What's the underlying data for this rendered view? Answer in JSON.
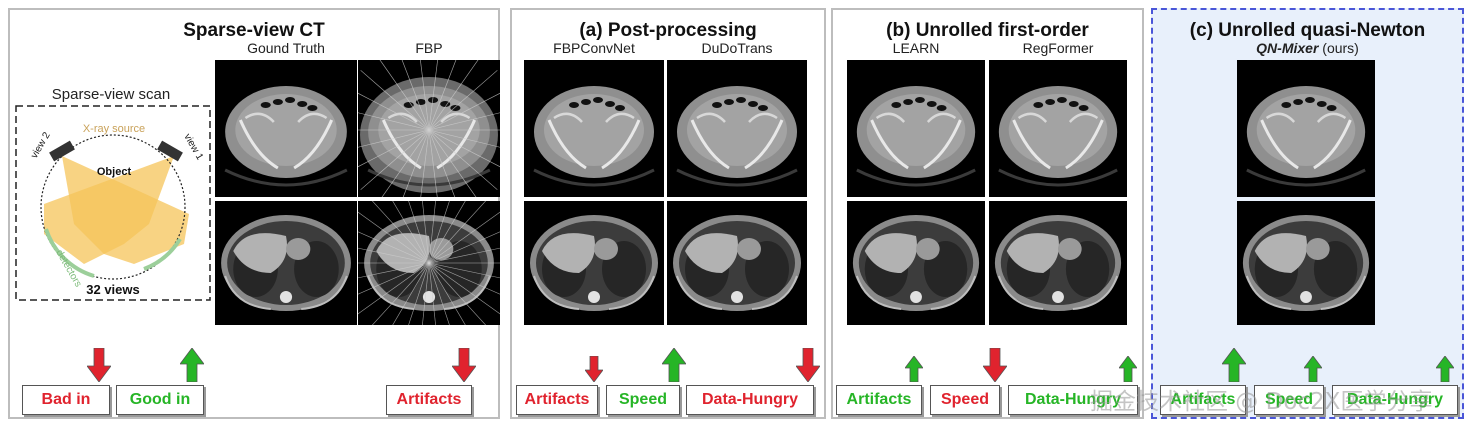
{
  "panels": {
    "sparse": {
      "title": "Sparse-view CT",
      "col1": "Gound Truth",
      "col2": "FBP",
      "scan": {
        "title": "Sparse-view scan",
        "xray_source": "X-ray source",
        "view1": "view 1",
        "view2": "view 2",
        "object": "Object",
        "detectors": "detectors",
        "views": "32 views"
      },
      "badges": {
        "bad": "Bad in",
        "good": "Good in",
        "artifacts": "Artifacts"
      }
    },
    "post": {
      "title": "(a) Post-processing",
      "col1": "FBPConvNet",
      "col2": "DuDoTrans",
      "badges": {
        "artifacts": "Artifacts",
        "speed": "Speed",
        "data_hungry": "Data-Hungry"
      }
    },
    "unrolled": {
      "title": "(b) Unrolled first-order",
      "col1": "LEARN",
      "col2": "RegFormer",
      "badges": {
        "artifacts": "Artifacts",
        "speed": "Speed",
        "data_hungry": "Data-Hungry"
      }
    },
    "qn": {
      "title": "(c) Unrolled quasi-Newton",
      "method": "QN-Mixer",
      "ours": " (ours)",
      "badges": {
        "artifacts": "Artifacts",
        "speed": "Speed",
        "data_hungry": "Data-Hungry"
      }
    }
  },
  "watermark": "掘金技术社区 @ Doc2X医学分享",
  "colors": {
    "bad": "#e0232e",
    "good": "#26b526",
    "dash": "#4a56d8",
    "qn_bg": "#e8f0fb"
  }
}
